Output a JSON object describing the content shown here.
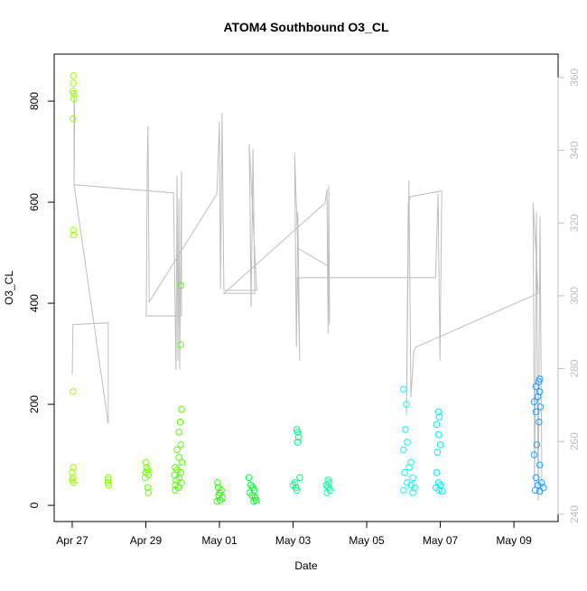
{
  "chart_data": {
    "type": "scatter",
    "title": "ATOM4 Southbound O3_CL",
    "x_label": "Date",
    "y_label": "O3_CL",
    "xlim": [
      -0.49,
      13.2
    ],
    "xticks": [
      {
        "value": 0,
        "label": "Apr 27"
      },
      {
        "value": 2,
        "label": "Apr 29"
      },
      {
        "value": 4,
        "label": "May 01"
      },
      {
        "value": 6,
        "label": "May 03"
      },
      {
        "value": 8,
        "label": "May 05"
      },
      {
        "value": 10,
        "label": "May 07"
      },
      {
        "value": 12,
        "label": "May 09"
      }
    ],
    "ylim": [
      -32,
      893
    ],
    "yticks": [
      0,
      200,
      400,
      600,
      800
    ],
    "y2lim": [
      238,
      366.4
    ],
    "y2ticks": [
      240,
      260,
      280,
      300,
      320,
      340,
      360
    ],
    "y2_color": "#bebebe",
    "series": [
      {
        "type": "line",
        "axis": "y2",
        "color": "#bebebe",
        "x": [
          0,
          0.02,
          0.98,
          0.98,
          0.05,
          0.05,
          0.07,
          0.05,
          2.75,
          2.82,
          2.85,
          2.87,
          2.9,
          2.92,
          2.97,
          2.97,
          2.01,
          2.04,
          2.06,
          2.09,
          3.93,
          4.0,
          4.03,
          4.07,
          4.12,
          5.01,
          4.81,
          4.86,
          4.91,
          4.96,
          4.12,
          6.87,
          6.92,
          6.95,
          6.97,
          6.99,
          6.95,
          6.13,
          6.04,
          6.09,
          6.13,
          6.18,
          6.13,
          9.87,
          9.94,
          9.99,
          10.04,
          9.2,
          9.13,
          9.08,
          9.15,
          9.2,
          9.28,
          9.33,
          12.66,
          12.52,
          12.56,
          12.61,
          12.66,
          12.71,
          12.76
        ],
        "values": [
          278.4,
          292.1,
          292.6,
          264.8,
          330.5,
          356.5,
          349.1,
          330.5,
          328.3,
          279.7,
          333,
          282.2,
          326.8,
          279.7,
          334.2,
          294.5,
          294.5,
          336.7,
          346.6,
          298.3,
          328,
          347.9,
          302,
          350.3,
          301.5,
          301.5,
          341.7,
          297,
          340.4,
          300.7,
          300.7,
          325.5,
          329.3,
          289.6,
          330.5,
          292.1,
          308.2,
          313.1,
          339.2,
          285.9,
          323.1,
          282.2,
          305,
          305,
          328,
          282.2,
          328.8,
          327.3,
          325.5,
          267.3,
          331.7,
          272.2,
          284.6,
          285.9,
          300.7,
          325.5,
          247.4,
          323.1,
          243.7,
          321.8,
          245
        ]
      },
      {
        "color": "#99ff00",
        "x": [
          0.03,
          0.03,
          0.02,
          0.04,
          0.04,
          0.02,
          0.03,
          0.04,
          0.02,
          0.03,
          0.0,
          0.02,
          0.0,
          0.03
        ],
        "values": [
          850,
          835,
          820,
          815,
          805,
          765,
          545,
          535,
          225,
          75,
          65,
          55,
          50,
          45
        ]
      },
      {
        "color": "#8cff00",
        "x": [
          0.98,
          0.98,
          0.97,
          0.99
        ],
        "values": [
          55,
          50,
          45,
          40
        ]
      },
      {
        "color": "#6eff00",
        "x": [
          2.0,
          2.02,
          2.05,
          2.0,
          2.07,
          1.98,
          2.05,
          2.07
        ],
        "values": [
          85,
          75,
          70,
          65,
          60,
          55,
          35,
          25
        ]
      },
      {
        "color": "#55ff00",
        "x": [
          2.95,
          2.95,
          2.97,
          2.93,
          2.9,
          2.95,
          2.85,
          2.9,
          2.98,
          2.8,
          2.85,
          2.95,
          2.78,
          2.9,
          2.82,
          2.97,
          2.8,
          2.88,
          2.8
        ],
        "values": [
          435,
          318,
          190,
          165,
          145,
          120,
          110,
          95,
          85,
          75,
          70,
          65,
          60,
          55,
          50,
          45,
          40,
          35,
          30
        ]
      },
      {
        "color": "#2bff00",
        "x": [
          3.95,
          3.97,
          4.05,
          4.0,
          3.98,
          4.08,
          4.02,
          3.93
        ],
        "values": [
          45,
          35,
          30,
          25,
          20,
          15,
          10,
          8
        ]
      },
      {
        "color": "#00ff2b",
        "x": [
          4.8,
          4.85,
          4.9,
          4.95,
          4.82,
          4.88,
          4.97,
          5.0,
          4.93
        ],
        "values": [
          55,
          40,
          35,
          30,
          25,
          20,
          15,
          10,
          8
        ]
      },
      {
        "color": "#00ff80",
        "x": [
          6.1,
          6.12,
          6.15,
          6.12,
          6.18,
          6.05,
          6.0,
          6.08,
          6.1
        ],
        "values": [
          150,
          145,
          135,
          125,
          55,
          45,
          40,
          35,
          30
        ]
      },
      {
        "color": "#00ffa0",
        "x": [
          6.95,
          6.97,
          6.9,
          6.95,
          7.0,
          6.92
        ],
        "values": [
          50,
          45,
          40,
          35,
          30,
          25
        ]
      },
      {
        "color": "#00ffee",
        "x": [
          9.0,
          9.08,
          9.05,
          9.1,
          9.0,
          9.2,
          9.15,
          9.03,
          9.25,
          9.1,
          9.2,
          9.3,
          9.0,
          9.25
        ],
        "values": [
          230,
          200,
          150,
          125,
          110,
          85,
          75,
          65,
          55,
          45,
          40,
          35,
          30,
          25
        ]
      },
      {
        "color": "#00eeff",
        "x": [
          9.95,
          9.97,
          9.9,
          9.95,
          10.0,
          9.92,
          9.9,
          9.95,
          10.0,
          9.88,
          9.97,
          10.05
        ],
        "values": [
          185,
          175,
          160,
          140,
          120,
          105,
          65,
          45,
          40,
          35,
          30,
          28
        ]
      },
      {
        "color": "#1a9fff",
        "x": [
          12.7,
          12.68,
          12.6,
          12.7,
          12.65,
          12.55,
          12.72,
          12.6,
          12.68,
          12.62,
          12.55,
          12.7,
          12.6,
          12.75,
          12.65,
          12.8,
          12.58,
          12.7
        ],
        "values": [
          250,
          245,
          235,
          225,
          215,
          205,
          195,
          185,
          165,
          120,
          100,
          80,
          55,
          45,
          40,
          35,
          30,
          28
        ]
      }
    ]
  }
}
